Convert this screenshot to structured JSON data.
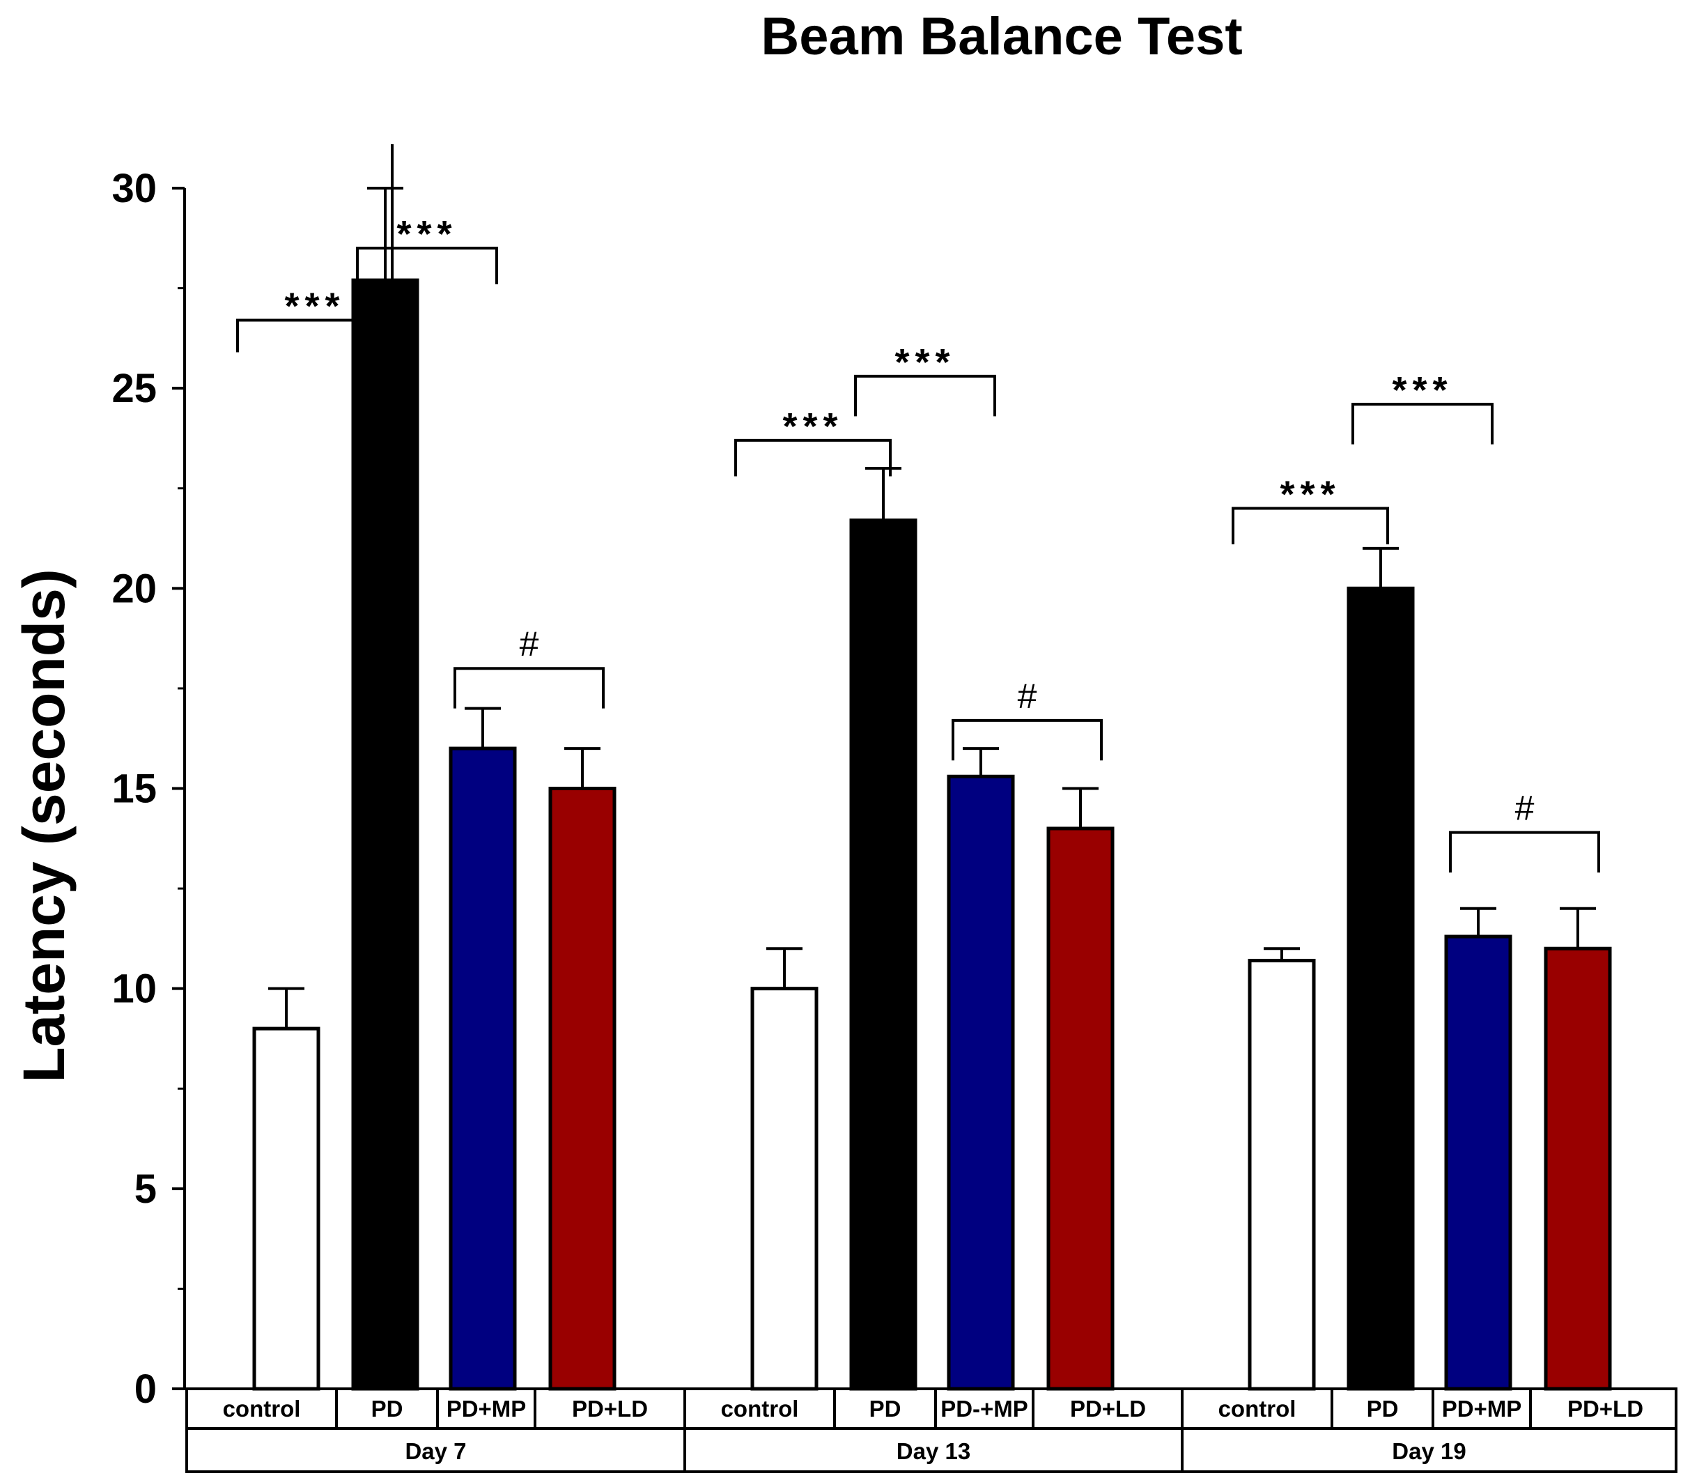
{
  "chart_data": {
    "type": "bar",
    "title": "Beam Balance Test",
    "ylabel": "Latency (seconds)",
    "xlabel": "",
    "ylim": [
      0,
      30
    ],
    "yticks": [
      0,
      5,
      10,
      15,
      20,
      25,
      30
    ],
    "yticks_text": [
      "0",
      "5",
      "10",
      "15",
      "20",
      "25",
      "30"
    ],
    "group_colors": {
      "control": "#ffffff",
      "PD": "#000000",
      "PD+MP": "#000080",
      "PD+LD": "#990000"
    },
    "groups": [
      {
        "label": "Day 7",
        "categories": [
          "control",
          "PD",
          "PD+MP",
          "PD+LD"
        ],
        "color_keys": [
          "control",
          "PD",
          "PD+MP",
          "PD+LD"
        ],
        "values": [
          9.0,
          27.7,
          16.0,
          15.0
        ],
        "errors": [
          1.0,
          2.3,
          1.0,
          1.0
        ],
        "annotations": [
          {
            "from": 0,
            "to": 1,
            "text": "***",
            "y": 26.7,
            "drop_from": 25.9,
            "drop_to": 31.1
          },
          {
            "from": 1,
            "to": 2,
            "text": "***",
            "y": 28.5,
            "drop_from": 26.7,
            "drop_to": 27.6
          },
          {
            "from": 2,
            "to": 3,
            "text": "#",
            "y": 18.0,
            "drop_from": 17.0,
            "drop_to": 17.0
          }
        ]
      },
      {
        "label": "Day 13",
        "categories": [
          "control",
          "PD",
          "PD-+MP",
          "PD+LD"
        ],
        "color_keys": [
          "control",
          "PD",
          "PD+MP",
          "PD+LD"
        ],
        "values": [
          10.0,
          21.7,
          15.3,
          14.0
        ],
        "errors": [
          1.0,
          1.3,
          0.7,
          1.0
        ],
        "annotations": [
          {
            "from": 0,
            "to": 1,
            "text": "***",
            "y": 23.7,
            "drop_from": 22.8,
            "drop_to": 22.8
          },
          {
            "from": 1,
            "to": 2,
            "text": "***",
            "y": 25.3,
            "drop_from": 24.3,
            "drop_to": 24.3
          },
          {
            "from": 2,
            "to": 3,
            "text": "#",
            "y": 16.7,
            "drop_from": 15.7,
            "drop_to": 15.7
          }
        ]
      },
      {
        "label": "Day 19",
        "categories": [
          "control",
          "PD",
          "PD+MP",
          "PD+LD"
        ],
        "color_keys": [
          "control",
          "PD",
          "PD+MP",
          "PD+LD"
        ],
        "values": [
          10.7,
          20.0,
          11.3,
          11.0
        ],
        "errors": [
          0.3,
          1.0,
          0.7,
          1.0
        ],
        "annotations": [
          {
            "from": 0,
            "to": 1,
            "text": "***",
            "y": 22.0,
            "drop_from": 21.1,
            "drop_to": 21.1
          },
          {
            "from": 1,
            "to": 2,
            "text": "***",
            "y": 24.6,
            "drop_from": 23.6,
            "drop_to": 23.6
          },
          {
            "from": 2,
            "to": 3,
            "text": "#",
            "y": 13.9,
            "drop_from": 12.9,
            "drop_to": 12.9
          }
        ]
      }
    ]
  }
}
